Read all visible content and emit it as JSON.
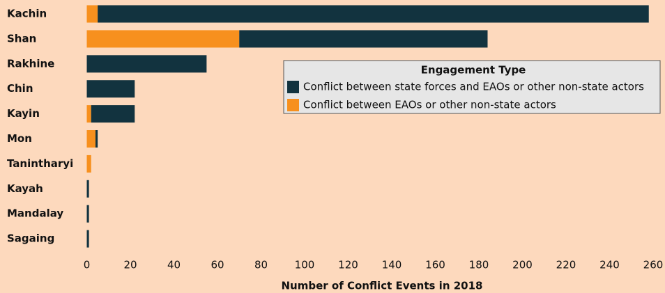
{
  "chart_data": {
    "type": "stacked-bar-horizontal",
    "categories": [
      "Kachin",
      "Shan",
      "Rakhine",
      "Chin",
      "Kayin",
      "Mon",
      "Tanintharyi",
      "Kayah",
      "Mandalay",
      "Sagaing"
    ],
    "series": [
      {
        "name": "Conflict between state forces and EAOs or other non-state actors",
        "color": "#12333f",
        "values": [
          253,
          114,
          55,
          22,
          20,
          1,
          0,
          1,
          1,
          1
        ]
      },
      {
        "name": "Conflict between EAOs or other non-state actors",
        "color": "#f7901e",
        "values": [
          5,
          70,
          0,
          0,
          2,
          4,
          2,
          0,
          0,
          0
        ]
      }
    ],
    "legend_title": "Engagement Type",
    "xlabel": "Number of Conflict Events in 2018",
    "xlim": [
      0,
      260
    ],
    "xticks": [
      0,
      20,
      40,
      60,
      80,
      100,
      120,
      140,
      160,
      180,
      200,
      220,
      240,
      260
    ],
    "grid": false,
    "legend_position": "right"
  }
}
